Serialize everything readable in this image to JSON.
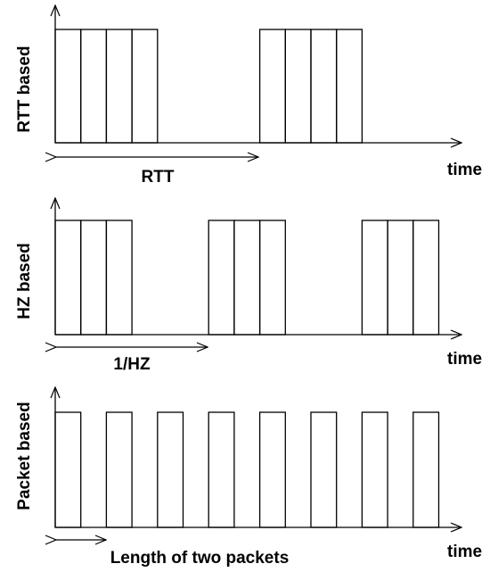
{
  "panels": [
    {
      "id": "rtt",
      "ylabel": "RTT based",
      "xlabel": "time",
      "interval_label": "RTT",
      "groups": [
        [
          0,
          1,
          2,
          3
        ],
        [
          8,
          9,
          10,
          11
        ]
      ]
    },
    {
      "id": "hz",
      "ylabel": "HZ based",
      "xlabel": "time",
      "interval_label": "1/HZ",
      "groups": [
        [
          0,
          1,
          2
        ],
        [
          6,
          7,
          8
        ],
        [
          12,
          13,
          14
        ]
      ]
    },
    {
      "id": "packet",
      "ylabel": "Packet based",
      "xlabel": "time",
      "interval_label": "Length of two packets",
      "groups": [
        [
          0
        ],
        [
          2
        ],
        [
          4
        ],
        [
          6
        ],
        [
          8
        ],
        [
          10
        ],
        [
          12
        ],
        [
          14
        ]
      ]
    }
  ]
}
